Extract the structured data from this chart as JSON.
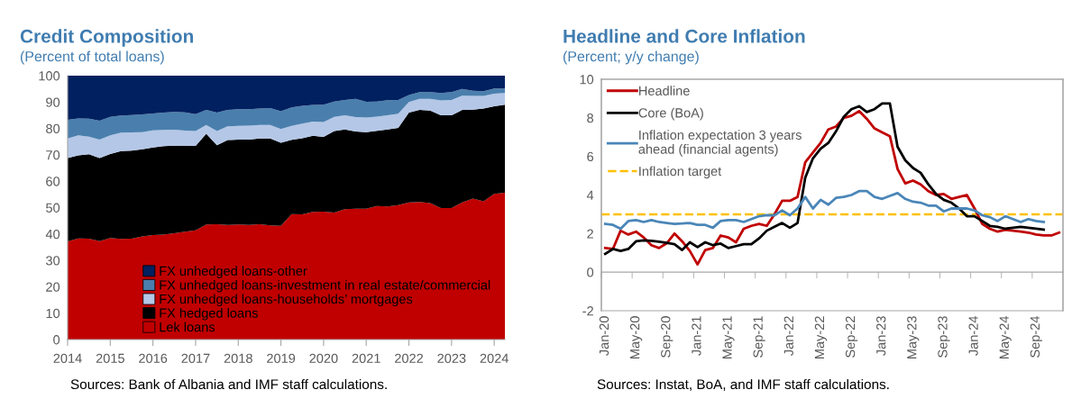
{
  "chart_data": [
    {
      "type": "area",
      "title": "Credit Composition",
      "subtitle": "(Percent of total loans)",
      "stacked": true,
      "legend": "bottom",
      "x": [
        2014,
        2014.25,
        2014.5,
        2014.75,
        2015,
        2015.25,
        2015.5,
        2015.75,
        2016,
        2016.25,
        2016.5,
        2016.75,
        2017,
        2017.25,
        2017.5,
        2017.75,
        2018,
        2018.25,
        2018.5,
        2018.75,
        2019,
        2019.25,
        2019.5,
        2019.75,
        2020,
        2020.25,
        2020.5,
        2020.75,
        2021,
        2021.25,
        2021.5,
        2021.75,
        2022,
        2022.25,
        2022.5,
        2022.75,
        2023,
        2023.25,
        2023.5,
        2023.75,
        2024,
        2024.25
      ],
      "xlim": [
        2014,
        2024.25
      ],
      "xticks": [
        2014,
        2015,
        2016,
        2017,
        2018,
        2019,
        2020,
        2021,
        2022,
        2023,
        2024
      ],
      "ylim": [
        0,
        100
      ],
      "yticks": [
        0,
        10,
        20,
        30,
        40,
        50,
        60,
        70,
        80,
        90,
        100
      ],
      "series": [
        {
          "name": "Lek loans",
          "color": "#c00000",
          "values": [
            37.2,
            38.3,
            38.2,
            37.3,
            38.5,
            38.1,
            38.2,
            39.1,
            39.6,
            39.8,
            40.3,
            40.9,
            41.4,
            43.6,
            43.7,
            43.4,
            43.6,
            43.4,
            43.7,
            43.3,
            43.1,
            47.5,
            47.4,
            48.4,
            48.5,
            48.1,
            49.4,
            49.6,
            49.6,
            50.6,
            50.4,
            50.9,
            52.0,
            52.1,
            51.7,
            49.8,
            49.8,
            52.0,
            53.4,
            52.4,
            55.2,
            55.6
          ]
        },
        {
          "name": "FX hedged loans",
          "color": "#000000",
          "values": [
            31.6,
            31.5,
            32.0,
            31.5,
            31.8,
            33.3,
            33.4,
            33.0,
            33.2,
            33.5,
            33.2,
            32.6,
            32.0,
            34.4,
            29.9,
            32.2,
            32.2,
            32.4,
            32.5,
            32.9,
            31.5,
            28.2,
            28.9,
            28.8,
            28.3,
            30.9,
            30.2,
            29.2,
            29.0,
            28.5,
            29.2,
            29.3,
            34.0,
            34.9,
            35.1,
            35.2,
            35.2,
            35.0,
            33.7,
            35.1,
            33.2,
            33.4
          ]
        },
        {
          "name": "FX unhedged loans-households’ mortgages",
          "color": "#b4c7e7",
          "values": [
            7.4,
            7.6,
            6.7,
            7.0,
            7.1,
            7.0,
            6.9,
            6.5,
            6.5,
            6.1,
            6.0,
            5.7,
            5.6,
            3.3,
            5.4,
            5.2,
            5.2,
            5.3,
            5.1,
            5.1,
            5.2,
            5.3,
            5.5,
            5.4,
            5.6,
            5.4,
            5.4,
            5.5,
            5.5,
            5.4,
            5.4,
            5.4,
            4.0,
            4.2,
            4.4,
            5.6,
            5.8,
            5.4,
            5.2,
            4.8,
            4.8,
            4.4
          ]
        },
        {
          "name": "FX unhedged loans-investment in real estate/commercial",
          "color": "#4a7fad",
          "values": [
            7.1,
            6.4,
            6.8,
            7.1,
            7.0,
            6.5,
            6.6,
            6.7,
            6.4,
            6.6,
            6.8,
            6.9,
            6.4,
            5.7,
            7.0,
            6.2,
            6.3,
            6.2,
            6.2,
            6.4,
            6.7,
            7.0,
            6.8,
            6.3,
            6.6,
            5.8,
            5.8,
            6.9,
            6.0,
            5.7,
            5.7,
            5.2,
            2.7,
            2.6,
            2.6,
            2.8,
            3.0,
            2.6,
            2.0,
            1.8,
            1.9,
            1.7
          ]
        },
        {
          "name": "FX unhedged loans-other",
          "color": "#002060",
          "values": [
            16.7,
            16.2,
            16.3,
            17.1,
            15.6,
            15.1,
            14.9,
            14.7,
            14.3,
            14.0,
            13.7,
            13.9,
            14.6,
            13.0,
            14.0,
            13.0,
            12.7,
            12.7,
            12.5,
            12.3,
            13.5,
            12.0,
            11.4,
            11.1,
            11.0,
            9.8,
            9.2,
            8.8,
            9.9,
            9.8,
            9.3,
            9.2,
            7.3,
            6.2,
            6.2,
            6.6,
            6.2,
            5.0,
            5.7,
            5.9,
            4.9,
            4.9
          ]
        }
      ],
      "annotations": [
        "Sources: Bank of Albania and IMF staff calculations."
      ]
    },
    {
      "type": "line",
      "title": "Headline and Core Inflation",
      "subtitle": "(Percent; y/y change)",
      "legend": "top left",
      "line_style": "solid",
      "categories": [
        "Jan-20",
        null,
        null,
        null,
        "May-20",
        null,
        null,
        null,
        "Sep-20",
        null,
        null,
        null,
        "Jan-21",
        null,
        null,
        null,
        "May-21",
        null,
        null,
        null,
        "Sep-21",
        null,
        null,
        null,
        "Jan-22",
        null,
        null,
        null,
        "May-22",
        null,
        null,
        null,
        "Sep-22",
        null,
        null,
        null,
        "Jan-23",
        null,
        null,
        null,
        "May-23",
        null,
        null,
        null,
        "Sep-23",
        null,
        null,
        null,
        "Jan-24",
        null,
        null,
        null,
        "May-24",
        null,
        null,
        null,
        "Sep-24",
        null,
        null,
        null
      ],
      "ylim": [
        -2,
        10
      ],
      "yticks": [
        -2,
        0,
        2,
        4,
        6,
        8,
        10
      ],
      "series": [
        {
          "name": "Headline",
          "color": "#c00000",
          "values": [
            1.25,
            1.2,
            2.15,
            1.95,
            2.1,
            1.8,
            1.4,
            1.25,
            1.5,
            2.0,
            1.6,
            1.1,
            0.4,
            1.15,
            1.25,
            1.9,
            1.8,
            1.55,
            2.25,
            2.4,
            2.5,
            2.4,
            3.0,
            3.7,
            3.7,
            3.9,
            5.7,
            6.2,
            6.7,
            7.4,
            7.55,
            8.0,
            8.1,
            8.35,
            7.95,
            7.45,
            7.25,
            7.05,
            5.35,
            4.6,
            4.75,
            4.55,
            4.2,
            4.0,
            4.05,
            3.8,
            3.9,
            4.0,
            3.3,
            2.5,
            2.25,
            2.1,
            2.2,
            2.15,
            2.1,
            2.05,
            1.95,
            1.9,
            1.9,
            2.05
          ]
        },
        {
          "name": "Core (BoA)",
          "color": "#000000",
          "values": [
            0.95,
            1.2,
            1.1,
            1.2,
            1.6,
            1.65,
            1.62,
            1.58,
            1.52,
            1.45,
            1.15,
            1.55,
            1.3,
            1.55,
            1.4,
            1.48,
            1.25,
            1.35,
            1.45,
            1.45,
            1.75,
            2.15,
            2.35,
            2.55,
            2.3,
            2.55,
            4.9,
            5.9,
            6.4,
            6.7,
            7.3,
            8.05,
            8.45,
            8.6,
            8.3,
            8.45,
            8.75,
            8.75,
            6.5,
            5.8,
            5.4,
            5.15,
            4.55,
            4.05,
            3.75,
            3.6,
            3.3,
            2.9,
            2.9,
            2.65,
            2.4,
            2.35,
            2.25,
            2.3,
            2.35,
            2.3,
            2.25,
            2.2,
            null,
            null
          ]
        },
        {
          "name": "Inflation expectation 3 years ahead (financial agents)",
          "color": "#4a86b8",
          "values": [
            2.5,
            2.45,
            2.25,
            2.65,
            2.7,
            2.6,
            2.7,
            2.6,
            2.55,
            2.5,
            2.52,
            2.55,
            2.45,
            2.45,
            2.3,
            2.65,
            2.7,
            2.7,
            2.6,
            2.75,
            2.9,
            2.95,
            2.95,
            3.2,
            2.95,
            3.3,
            3.9,
            3.3,
            3.75,
            3.5,
            3.85,
            3.9,
            4.0,
            4.2,
            4.2,
            3.9,
            3.8,
            3.95,
            4.1,
            3.8,
            3.65,
            3.6,
            3.45,
            3.45,
            3.15,
            3.3,
            3.3,
            3.3,
            3.2,
            2.95,
            2.85,
            2.65,
            2.9,
            2.75,
            2.6,
            2.75,
            2.65,
            2.6,
            null,
            null
          ]
        }
      ],
      "ref_lines": [
        {
          "axis": "y",
          "value": 3,
          "label": "Inflation target",
          "color": "#ffc000",
          "line_style": "dashed"
        }
      ],
      "annotations": [
        "Sources: Instat, BoA, and IMF staff calculations."
      ]
    }
  ]
}
